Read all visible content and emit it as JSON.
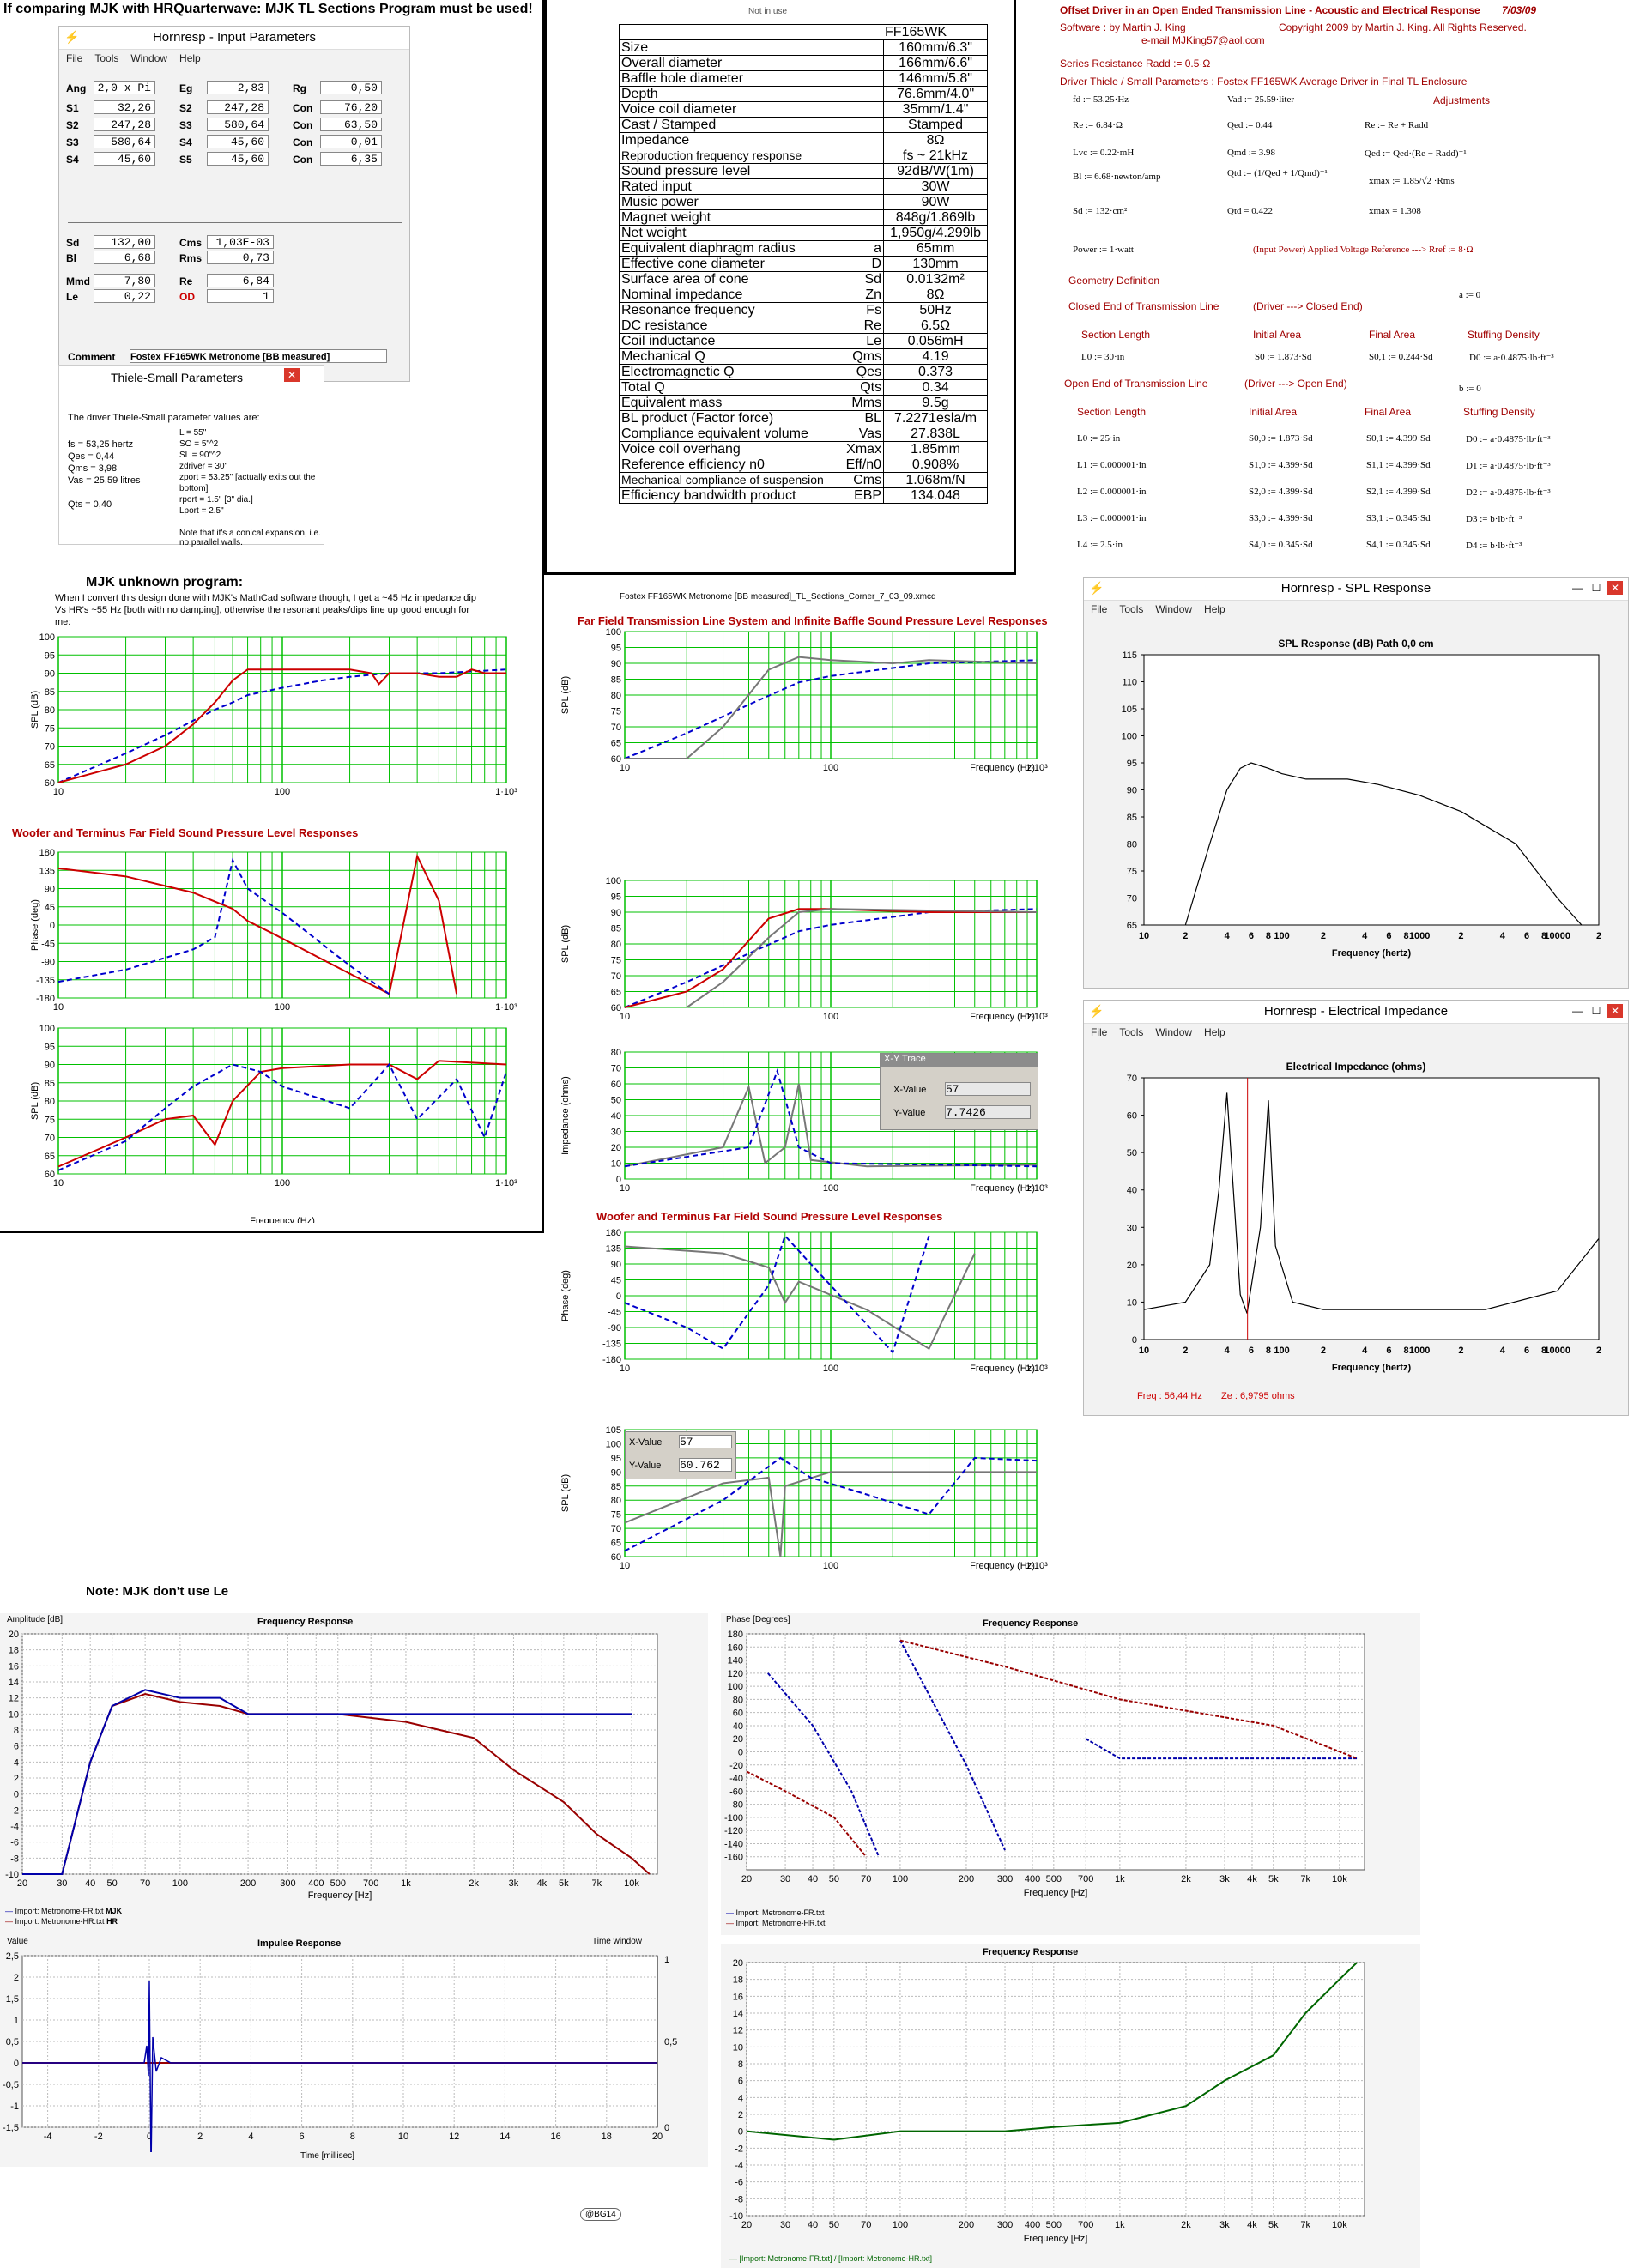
{
  "headline": "If comparing MJK with HRQuarterwave: MJK TL Sections Program must be used!",
  "hr_input": {
    "title": "Hornresp - Input Parameters",
    "menu": [
      "File",
      "Tools",
      "Window",
      "Help"
    ],
    "rows": [
      [
        {
          "l": "Ang",
          "v": "2,0 x Pi"
        },
        {
          "l": "Eg",
          "v": "2,83"
        },
        {
          "l": "Rg",
          "v": "0,50"
        }
      ],
      [
        {
          "l": "S1",
          "v": "32,26"
        },
        {
          "l": "S2",
          "v": "247,28"
        },
        {
          "l": "Con",
          "v": "76,20"
        }
      ],
      [
        {
          "l": "S2",
          "v": "247,28"
        },
        {
          "l": "S3",
          "v": "580,64"
        },
        {
          "l": "Con",
          "v": "63,50"
        }
      ],
      [
        {
          "l": "S3",
          "v": "580,64"
        },
        {
          "l": "S4",
          "v": "45,60"
        },
        {
          "l": "Con",
          "v": "0,01"
        }
      ],
      [
        {
          "l": "S4",
          "v": "45,60"
        },
        {
          "l": "S5",
          "v": "45,60"
        },
        {
          "l": "Con",
          "v": "6,35"
        }
      ]
    ],
    "rows2": [
      [
        {
          "l": "Sd",
          "v": "132,00"
        },
        {
          "l": "Cms",
          "v": "1,03E-03"
        }
      ],
      [
        {
          "l": "Bl",
          "v": "6,68"
        },
        {
          "l": "Rms",
          "v": "0,73"
        }
      ],
      [
        {
          "l": "Mmd",
          "v": "7,80"
        },
        {
          "l": "Re",
          "v": "6,84"
        }
      ],
      [
        {
          "l": "Le",
          "v": "0,22"
        },
        {
          "l": "OD",
          "v": "1"
        }
      ]
    ],
    "comment_label": "Comment",
    "comment": "Fostex FF165WK Metronome [BB measured]"
  },
  "ts": {
    "title": "Thiele-Small Parameters",
    "intro": "The driver Thiele-Small parameter values are:",
    "left": [
      "fs = 53,25 hertz",
      "Qes = 0,44",
      "Qms = 3,98",
      "Vas = 25,59 litres",
      "",
      "Qts = 0,40"
    ],
    "right": [
      "L = 55\"",
      "SO = 5\"^2",
      "SL = 90\"^2",
      "zdriver = 30\"",
      "zport = 53.25\" [actually exits out the bottom]",
      "rport = 1.5\" [3\" dia.]",
      "Lport = 2.5\""
    ],
    "note": "Note that it's a conical expansion, i.e. no parallel walls."
  },
  "mjk_unknown": {
    "title": "MJK unknown program:",
    "text": "When I convert this design done with MJK's MathCad software though, I get a ~45 Hz impedance dip Vs HR's ~55 Hz [both with no damping], otherwise the resonant peaks/dips line up good enough for me:"
  },
  "note_le": "Note: MJK don't use Le",
  "not_in_use": "Not in use",
  "spec": {
    "model": "FF165WK",
    "rows": [
      [
        "Size",
        "160mm/6.3\"",
        ""
      ],
      [
        "Overall diameter",
        "166mm/6.6\"",
        ""
      ],
      [
        "Baffle hole diameter",
        "146mm/5.8\"",
        ""
      ],
      [
        "Depth",
        "76.6mm/4.0\"",
        ""
      ],
      [
        "Voice coil diameter",
        "35mm/1.4\"",
        ""
      ],
      [
        "Cast / Stamped",
        "Stamped",
        ""
      ],
      [
        "Impedance",
        "8Ω",
        ""
      ],
      [
        "Reproduction frequency response",
        "fs ~ 21kHz",
        ""
      ],
      [
        "Sound pressure level",
        "92dB/W(1m)",
        ""
      ],
      [
        "Rated input",
        "30W",
        ""
      ],
      [
        "Music power",
        "90W",
        ""
      ],
      [
        "Magnet weight",
        "848g/1.869lb",
        ""
      ],
      [
        "Net weight",
        "1,950g/4.299lb",
        ""
      ],
      [
        "Equivalent diaphragm radius",
        "65mm",
        "a"
      ],
      [
        "Effective cone diameter",
        "130mm",
        "D"
      ],
      [
        "Surface area of cone",
        "0.0132m²",
        "Sd"
      ],
      [
        "Nominal impedance",
        "8Ω",
        "Zn"
      ],
      [
        "Resonance frequency",
        "50Hz",
        "Fs"
      ],
      [
        "DC resistance",
        "6.5Ω",
        "Re"
      ],
      [
        "Coil inductance",
        "0.056mH",
        "Le"
      ],
      [
        "Mechanical Q",
        "4.19",
        "Qms"
      ],
      [
        "Electromagnetic Q",
        "0.373",
        "Qes"
      ],
      [
        "Total Q",
        "0.34",
        "Qts"
      ],
      [
        "Equivalent mass",
        "9.5g",
        "Mms"
      ],
      [
        "BL product (Factor force)",
        "7.2271esla/m",
        "BL"
      ],
      [
        "Compliance equivalent volume",
        "27.838L",
        "Vas"
      ],
      [
        "Voice coil overhang",
        "1.85mm",
        "Xmax"
      ],
      [
        "Reference efficiency n0",
        "0.908%",
        "Eff/n0"
      ],
      [
        "Mechanical compliance of suspension",
        "1.068m/N",
        "Cms"
      ],
      [
        "Efficiency bandwidth product",
        "134.048",
        "EBP"
      ]
    ]
  },
  "mathcad": {
    "title": "Offset Driver in an Open Ended Transmission Line - Acoustic and Electrical Response",
    "date": "7/03/09",
    "software": "Software :     by       Martin J. King",
    "email": "e-mail  MJKing57@aol.com",
    "copyright": "Copyright 2009 by Martin J. King. All Rights Reserved.",
    "series": "Series Resistance     Radd := 0.5·Ω",
    "driver_params": "Driver Thiele / Small Parameters : Fostex FF165WK Average Driver in Final TL Enclosure",
    "adjust": "Adjustments",
    "eqs": [
      "fd := 53.25·Hz",
      "Vad := 25.59·liter",
      "Re := 6.84·Ω",
      "Qed := 0.44",
      "Re := Re + Radd",
      "Lvc := 0.22·mH",
      "Qmd := 3.98",
      "Qed := Qed·(Re − Radd)⁻¹",
      "Bl := 6.68·newton/amp",
      "Qtd := (1/Qed + 1/Qmd)⁻¹",
      "xmax := 1.85/√2 ·Rms",
      "Sd := 132·cm²",
      "Qtd = 0.422",
      "xmax = 1.308",
      "Power := 1·watt",
      "(Input Power)   Applied Voltage Reference --->   Rref := 8·Ω"
    ],
    "geo": "Geometry Definition",
    "closed": "Closed End of Transmission Line",
    "closed_dir": "(Driver ---> Closed End)",
    "a0": "a := 0",
    "sec_len": "Section Length",
    "init_area": "Initial Area",
    "final_area": "Final Area",
    "stuff": "Stuffing Density",
    "closed_row": [
      "L0 := 30·in",
      "S0 := 1.873·Sd",
      "S0,1 := 0.244·Sd",
      "D0 := a·0.4875·lb·ft⁻³"
    ],
    "open": "Open End of Transmission Line",
    "open_dir": "(Driver ---> Open End)",
    "b0": "b := 0",
    "open_rows": [
      [
        "L0 := 25·in",
        "S0,0 := 1.873·Sd",
        "S0,1 := 4.399·Sd",
        "D0 := a·0.4875·lb·ft⁻³"
      ],
      [
        "L1 := 0.000001·in",
        "S1,0 := 4.399·Sd",
        "S1,1 := 4.399·Sd",
        "D1 := a·0.4875·lb·ft⁻³"
      ],
      [
        "L2 := 0.000001·in",
        "S2,0 := 4.399·Sd",
        "S2,1 := 4.399·Sd",
        "D2 := a·0.4875·lb·ft⁻³"
      ],
      [
        "L3 := 0.000001·in",
        "S3,0 := 4.399·Sd",
        "S3,1 := 0.345·Sd",
        "D3 := b·lb·ft⁻³"
      ],
      [
        "L4 := 2.5·in",
        "S4,0 := 0.345·Sd",
        "S4,1 := 0.345·Sd",
        "D4 := b·lb·ft⁻³"
      ]
    ]
  },
  "mid_file": "Fostex FF165WK Metronome [BB measured]_TL_Sections_Corner_7_03_09.xmcd",
  "ff_title": "Far Field Transmission Line System and Infinite Baffle Sound Pressure Level Responses",
  "wt_title": "Woofer and Terminus Far Field Sound Pressure Level Responses",
  "xy_trace": {
    "title": "X-Y Trace",
    "x_label": "X-Value",
    "x": "57",
    "y_label": "Y-Value",
    "y": "7.7426"
  },
  "xy_trace2": {
    "x_label": "X-Value",
    "x": "57",
    "y_label": "Y-Value",
    "y": "60.762"
  },
  "hr_spl": {
    "title": "Hornresp - SPL Response",
    "menu": [
      "File",
      "Tools",
      "Window",
      "Help"
    ],
    "plot_title": "SPL Response (dB)   Path 0,0 cm",
    "xlabel": "Frequency (hertz)"
  },
  "hr_imp": {
    "title": "Hornresp - Electrical Impedance",
    "menu": [
      "File",
      "Tools",
      "Window",
      "Help"
    ],
    "plot_title": "Electrical Impedance (ohms)",
    "freq_readout": "Freq : 56,44 Hz",
    "ze_readout": "Ze : 6,9795 ohms",
    "xlabel": "Frequency (hertz)"
  },
  "arta": {
    "fr_title": "Frequency Response",
    "amp_label": "Amplitude [dB]",
    "freq_label": "Frequency [Hz]",
    "legend1": "Import: Metronome-FR.txt",
    "legend1_tag": "MJK",
    "legend2": "Import: Metronome-HR.txt",
    "legend2_tag": "HR",
    "ph_title": "Frequency Response",
    "ph_label": "Phase [Degrees]",
    "imp_title": "Impulse Response",
    "imp_ylabel": "Value",
    "imp_xlabel": "Time [millisec]",
    "time_window": "Time window",
    "diff_title": "Frequency Response",
    "diff_legend": "— [Import: Metronome-FR.txt] / [Import: Metronome-HR.txt]"
  },
  "watermark": "@BG14",
  "chart_data": [
    {
      "id": "mjk_spl_ff",
      "type": "line",
      "xlabel": "Frequency (Hz)",
      "ylabel": "SPL (dB)",
      "xscale": "log",
      "xlim": [
        10,
        1000
      ],
      "ylim": [
        60,
        100
      ],
      "x_ticks": [
        "10",
        "100",
        "1·10³"
      ],
      "y_ticks": [
        60,
        65,
        70,
        75,
        80,
        85,
        90,
        95,
        100
      ],
      "series": [
        {
          "name": "SPLo",
          "color": "#cc0000",
          "x": [
            10,
            20,
            30,
            40,
            50,
            60,
            70,
            100,
            150,
            200,
            250,
            270,
            300,
            400,
            500,
            600,
            700,
            800,
            1000
          ],
          "values": [
            60,
            65,
            70,
            76,
            82,
            88,
            91,
            91,
            91,
            91,
            90,
            87,
            90,
            90,
            89,
            89,
            91,
            90,
            90
          ]
        },
        {
          "name": "SPLr",
          "color": "#0000cc",
          "x": [
            10,
            20,
            30,
            40,
            50,
            60,
            70,
            100,
            150,
            200,
            300,
            500,
            1000
          ],
          "values": [
            60,
            68,
            73,
            77,
            80,
            82,
            84,
            86,
            88,
            89,
            90,
            90,
            91
          ]
        }
      ]
    },
    {
      "id": "mjk_phase",
      "type": "line",
      "xlabel": "Frequency (Hz)",
      "ylabel": "Phase (deg)",
      "xscale": "log",
      "xlim": [
        10,
        1000
      ],
      "ylim": [
        -180,
        180
      ],
      "y_ticks": [
        -180,
        -135,
        -90,
        -45,
        0,
        45,
        90,
        135,
        180
      ]
    },
    {
      "id": "mjk_spl_wt",
      "type": "line",
      "xlabel": "Frequency (Hz)",
      "ylabel": "SPL (dB)",
      "xscale": "log",
      "xlim": [
        10,
        1000
      ],
      "ylim": [
        60,
        100
      ],
      "y_ticks": [
        60,
        65,
        70,
        75,
        80,
        85,
        90,
        95,
        100
      ]
    },
    {
      "id": "hr_spl",
      "type": "line",
      "xlabel": "Frequency (hertz)",
      "xscale": "log",
      "xlim": [
        10,
        20000
      ],
      "ylim": [
        65,
        115
      ],
      "y_ticks": [
        65,
        70,
        75,
        80,
        85,
        90,
        95,
        100,
        105,
        110,
        115
      ],
      "x": [
        20,
        30,
        40,
        50,
        60,
        80,
        100,
        150,
        200,
        300,
        500,
        1000,
        2000,
        5000,
        10000,
        15000
      ],
      "values": [
        65,
        80,
        90,
        94,
        95,
        94,
        93,
        92,
        92,
        92,
        91,
        89,
        86,
        80,
        70,
        65
      ]
    },
    {
      "id": "hr_imp",
      "type": "line",
      "xlabel": "Frequency (hertz)",
      "xscale": "log",
      "xlim": [
        10,
        20000
      ],
      "ylim": [
        0,
        70
      ],
      "y_ticks": [
        0,
        10,
        20,
        30,
        40,
        50,
        60,
        70
      ],
      "x": [
        10,
        20,
        30,
        35,
        40,
        50,
        56,
        70,
        80,
        90,
        120,
        200,
        300,
        500,
        1000,
        3000,
        10000,
        20000
      ],
      "values": [
        8,
        10,
        20,
        40,
        66,
        12,
        7,
        30,
        64,
        25,
        10,
        8,
        8,
        8,
        8,
        8,
        13,
        27
      ]
    },
    {
      "id": "arta_fr",
      "type": "line",
      "xlabel": "Frequency [Hz]",
      "ylabel": "Amplitude [dB]",
      "xscale": "log",
      "xlim": [
        20,
        13000
      ],
      "ylim": [
        -10,
        20
      ],
      "y_ticks": [
        -10,
        -8,
        -6,
        -4,
        -2,
        0,
        2,
        4,
        6,
        8,
        10,
        12,
        14,
        16,
        18,
        20
      ],
      "x_ticks": [
        "20",
        "30",
        "40",
        "50",
        "70",
        "100",
        "200",
        "300",
        "400",
        "500",
        "700",
        "1k",
        "2k",
        "3k",
        "4k",
        "5k",
        "7k",
        "10k"
      ],
      "series": [
        {
          "name": "MJK",
          "color": "#0000aa",
          "x": [
            20,
            30,
            40,
            50,
            70,
            100,
            150,
            200,
            300,
            500,
            1000,
            2000,
            5000,
            10000
          ],
          "values": [
            -10,
            -10,
            4,
            11,
            13,
            12,
            12,
            10,
            10,
            10,
            10,
            10,
            10,
            10
          ]
        },
        {
          "name": "HR",
          "color": "#990000",
          "x": [
            20,
            30,
            40,
            50,
            70,
            100,
            150,
            200,
            300,
            500,
            1000,
            2000,
            3000,
            5000,
            7000,
            10000,
            12000
          ],
          "values": [
            -10,
            -10,
            4,
            11,
            12.5,
            11.5,
            11,
            10,
            10,
            10,
            9,
            7,
            3,
            -1,
            -5,
            -8,
            -10
          ]
        }
      ]
    },
    {
      "id": "arta_phase",
      "type": "line",
      "xlabel": "Frequency [Hz]",
      "ylabel": "Phase [Degrees]",
      "xscale": "log",
      "xlim": [
        20,
        13000
      ],
      "ylim": [
        -180,
        180
      ],
      "y_ticks": [
        -160,
        -140,
        -120,
        -100,
        -80,
        -60,
        -40,
        -20,
        0,
        20,
        40,
        60,
        80,
        100,
        120,
        140,
        160,
        180
      ]
    },
    {
      "id": "arta_impulse",
      "type": "line",
      "xlabel": "Time [millisec]",
      "ylabel": "Value",
      "xlim": [
        -5,
        20
      ],
      "ylim": [
        -1.5,
        2.5
      ],
      "y_ticks": [
        -1.5,
        -1,
        -0.5,
        0,
        0.5,
        1,
        1.5,
        2,
        2.5
      ],
      "x_ticks": [
        -4,
        -2,
        0,
        2,
        4,
        6,
        8,
        10,
        12,
        14,
        16,
        18,
        20
      ]
    },
    {
      "id": "arta_diff",
      "type": "line",
      "xlabel": "Frequency [Hz]",
      "xscale": "log",
      "xlim": [
        20,
        13000
      ],
      "ylim": [
        -10,
        20
      ],
      "y_ticks": [
        -10,
        -8,
        -6,
        -4,
        -2,
        0,
        2,
        4,
        6,
        8,
        10,
        12,
        14,
        16,
        18,
        20
      ],
      "x": [
        20,
        50,
        100,
        200,
        300,
        500,
        1000,
        2000,
        3000,
        5000,
        7000,
        10000,
        12000
      ],
      "values": [
        0,
        -1,
        0,
        0,
        0,
        0.5,
        1,
        3,
        6,
        9,
        14,
        18,
        20
      ]
    }
  ]
}
